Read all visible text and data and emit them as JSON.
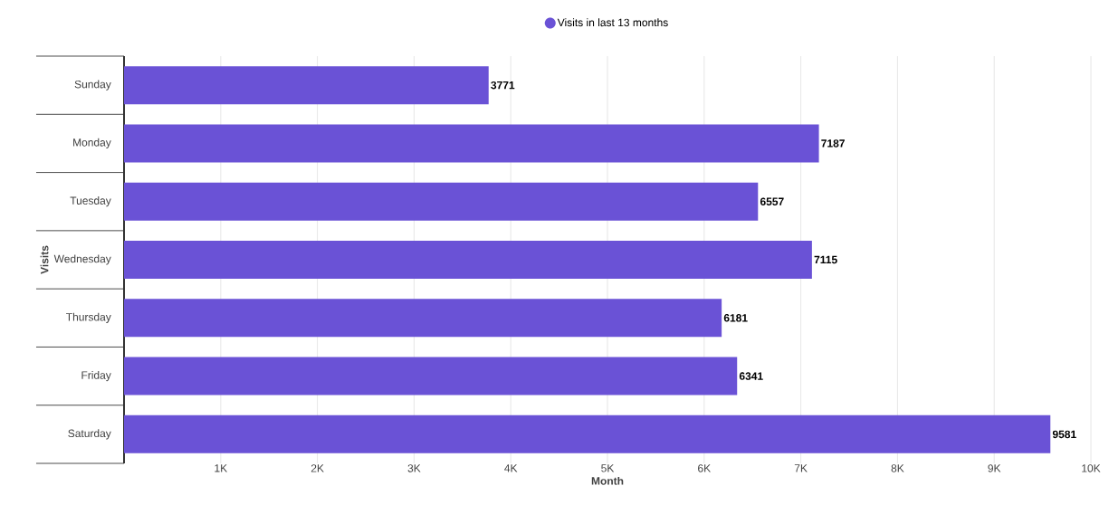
{
  "chart_data": {
    "type": "bar",
    "orientation": "horizontal",
    "categories": [
      "Sunday",
      "Monday",
      "Tuesday",
      "Wednesday",
      "Thursday",
      "Friday",
      "Saturday"
    ],
    "series": [
      {
        "name": "Visits in last 13 months",
        "color": "#6a52d6",
        "values": [
          3771,
          7187,
          6557,
          7115,
          6181,
          6341,
          9581
        ]
      }
    ],
    "xlabel": "Month",
    "ylabel": "Visits",
    "xlim": [
      0,
      10000
    ],
    "xticks": [
      {
        "value": 1000,
        "label": "1K"
      },
      {
        "value": 2000,
        "label": "2K"
      },
      {
        "value": 3000,
        "label": "3K"
      },
      {
        "value": 4000,
        "label": "4K"
      },
      {
        "value": 5000,
        "label": "5K"
      },
      {
        "value": 6000,
        "label": "6K"
      },
      {
        "value": 7000,
        "label": "7K"
      },
      {
        "value": 8000,
        "label": "8K"
      },
      {
        "value": 9000,
        "label": "9K"
      },
      {
        "value": 10000,
        "label": "10K"
      }
    ],
    "grid": "x",
    "legend": "top",
    "data_labels": true
  }
}
